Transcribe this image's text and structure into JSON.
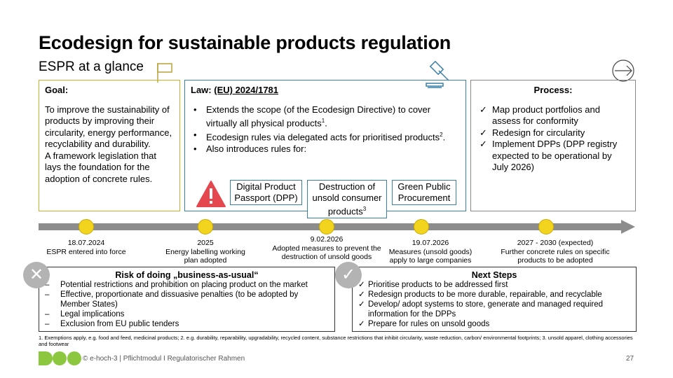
{
  "title": "Ecodesign for sustainable products regulation",
  "subtitle": "ESPR at a glance",
  "goal": {
    "heading": "Goal:",
    "text1": "To improve the sustainability of products by improving their circularity, energy performance, recyclability and durability.",
    "text2": "A framework legislation that lays the foundation for the adoption of concrete rules."
  },
  "law": {
    "heading_prefix": "Law: ",
    "heading_ref": "(EU) 2024/1781",
    "bullets": [
      "Extends the scope (of the Ecodesign Directive) to cover virtually all physical products",
      "Ecodesign rules via delegated acts for prioritised products",
      "Also introduces rules for:"
    ],
    "footnote_marks": [
      "1",
      "2"
    ],
    "sub_items": [
      "Digital Product Passport (DPP)",
      "Destruction of unsold consumer products",
      "Green Public Procurement"
    ],
    "sub_mark": "3"
  },
  "process": {
    "heading": "Process:",
    "items": [
      "Map product portfolios and assess for conformity",
      "Redesign for circularity",
      "Implement DPPs (DPP registry expected to be operational by July 2026)"
    ]
  },
  "milestones": [
    {
      "date": "18.07.2024",
      "text": "ESPR entered into force"
    },
    {
      "date": "2025",
      "text": "Energy labelling working plan adopted"
    },
    {
      "date": "9.02.2026",
      "text": "Adopted measures to prevent the destruction of unsold goods"
    },
    {
      "date": "19.07.2026",
      "text": "Measures (unsold goods) apply to large companies"
    },
    {
      "date": "2027 - 2030 (expected)",
      "text": "Further concrete rules on specific products to be adopted"
    }
  ],
  "risk": {
    "title": "Risk of doing „business-as-usual“",
    "items": [
      "Potential restrictions and prohibition on placing product on the market",
      "Effective, proportionate and dissuasive penalties (to be adopted by Member States)",
      "Legal implications",
      "Exclusion from EU public tenders"
    ]
  },
  "next_steps": {
    "title": "Next Steps",
    "items": [
      "Prioritise products to be addressed first",
      "Redesign products to be more durable, repairable, and recyclable",
      "Develop/ adopt systems to store, generate and managed required information for the DPPs",
      "Prepare for rules on unsold goods"
    ]
  },
  "footnote": "1. Exemptions apply, e.g. food and feed, medicinal products; 2. e.g. durability, reparability, upgradability, recycled content, substance restrictions that inhibit circularity, waste reduction, carbon/ environmental footprints; 3. unsold apparel, clothing accessories and footwear",
  "footer": "© e-hoch-3 | Pflichtmodul I Regulatorischer Rahmen",
  "page_number": "27",
  "icons": [
    "flag-icon",
    "gavel-icon",
    "arrow-right-icon",
    "warning-icon",
    "x-circle-icon",
    "check-circle-icon",
    "logo-icon"
  ],
  "colors": {
    "goal_border": "#c8b227",
    "law_border": "#3a7fa8",
    "milestone": "#f2d31e",
    "warning": "#e5474f",
    "logo": "#8dc63f"
  }
}
